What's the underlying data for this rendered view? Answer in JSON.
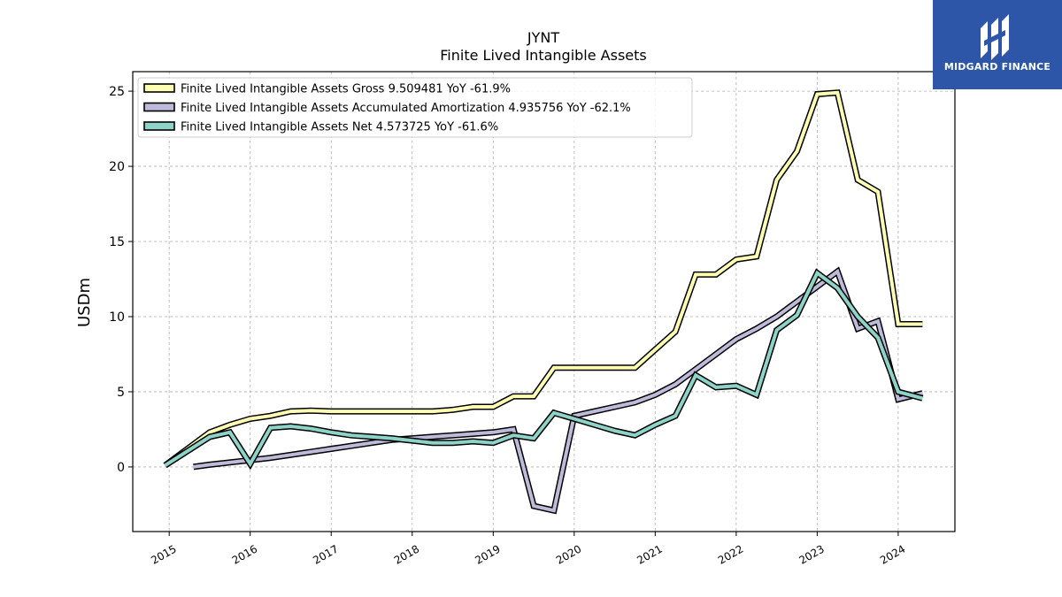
{
  "brand": {
    "name": "MIDGARD FINANCE",
    "color": "#2d56a8"
  },
  "chart_data": {
    "type": "line",
    "title": "JYNT",
    "subtitle": "Finite Lived Intangible Assets",
    "xlabel": "",
    "ylabel": "USDm",
    "xlim": [
      2014.55,
      2024.7
    ],
    "ylim": [
      -4.3,
      26.3
    ],
    "x_ticks": [
      2015,
      2016,
      2017,
      2018,
      2019,
      2020,
      2021,
      2022,
      2023,
      2024
    ],
    "x_tick_labels": [
      "2015",
      "2016",
      "2017",
      "2018",
      "2019",
      "2020",
      "2021",
      "2022",
      "2023",
      "2024"
    ],
    "y_ticks": [
      0,
      5,
      10,
      15,
      20,
      25
    ],
    "y_tick_labels": [
      "0",
      "5",
      "10",
      "15",
      "20",
      "25"
    ],
    "grid": true,
    "legend_position": "top-left",
    "series": [
      {
        "name": "Finite Lived Intangible Assets Gross  9.509481 YoY -61.9%",
        "color": "#ffffb3",
        "x": [
          2014.95,
          2015.5,
          2015.75,
          2016.0,
          2016.25,
          2016.5,
          2016.75,
          2017.0,
          2017.25,
          2017.5,
          2017.75,
          2018.0,
          2018.25,
          2018.5,
          2018.75,
          2019.0,
          2019.25,
          2019.5,
          2019.75,
          2020.0,
          2020.25,
          2020.5,
          2020.75,
          2021.0,
          2021.25,
          2021.5,
          2021.75,
          2022.0,
          2022.25,
          2022.5,
          2022.75,
          2023.0,
          2023.25,
          2023.5,
          2023.75,
          2024.0,
          2024.3
        ],
        "values": [
          0.1,
          2.3,
          2.8,
          3.2,
          3.4,
          3.7,
          3.75,
          3.7,
          3.7,
          3.7,
          3.7,
          3.7,
          3.7,
          3.8,
          4.0,
          4.0,
          4.7,
          4.7,
          6.6,
          6.6,
          6.6,
          6.6,
          6.6,
          7.8,
          9.0,
          12.8,
          12.8,
          13.8,
          14.0,
          19.1,
          21.0,
          24.8,
          24.9,
          19.1,
          18.3,
          9.5,
          9.5
        ]
      },
      {
        "name": "Finite Lived Intangible Assets Accumulated Amortization  4.935756 YoY -62.1%",
        "color": "#bebada",
        "x": [
          2015.3,
          2015.5,
          2015.75,
          2016.0,
          2016.25,
          2016.5,
          2016.75,
          2017.0,
          2017.25,
          2017.5,
          2017.75,
          2018.0,
          2018.25,
          2018.5,
          2018.75,
          2019.0,
          2019.25,
          2019.5,
          2019.75,
          2020.0,
          2020.25,
          2020.5,
          2020.75,
          2021.0,
          2021.25,
          2021.5,
          2021.75,
          2022.0,
          2022.25,
          2022.5,
          2022.75,
          2023.0,
          2023.25,
          2023.5,
          2023.75,
          2024.0,
          2024.3
        ],
        "values": [
          0.0,
          0.15,
          0.3,
          0.45,
          0.6,
          0.8,
          1.0,
          1.2,
          1.4,
          1.6,
          1.8,
          1.9,
          2.0,
          2.1,
          2.2,
          2.3,
          2.5,
          -2.6,
          -2.9,
          3.4,
          3.7,
          4.0,
          4.3,
          4.8,
          5.5,
          6.5,
          7.5,
          8.5,
          9.2,
          10.0,
          11.0,
          12.0,
          13.0,
          9.2,
          9.7,
          4.5,
          4.9
        ]
      },
      {
        "name": "Finite Lived Intangible Assets Net  4.573725 YoY -61.6%",
        "color": "#8dd3c7",
        "x": [
          2014.95,
          2015.5,
          2015.75,
          2016.0,
          2016.25,
          2016.5,
          2016.75,
          2017.0,
          2017.25,
          2017.5,
          2017.75,
          2018.0,
          2018.25,
          2018.5,
          2018.75,
          2019.0,
          2019.25,
          2019.5,
          2019.75,
          2020.0,
          2020.25,
          2020.5,
          2020.75,
          2021.0,
          2021.25,
          2021.5,
          2021.75,
          2022.0,
          2022.25,
          2022.5,
          2022.75,
          2023.0,
          2023.25,
          2023.5,
          2023.75,
          2024.0,
          2024.3
        ],
        "values": [
          0.1,
          2.0,
          2.3,
          0.2,
          2.6,
          2.7,
          2.55,
          2.3,
          2.1,
          2.0,
          1.9,
          1.75,
          1.6,
          1.6,
          1.7,
          1.6,
          2.1,
          1.9,
          3.6,
          3.2,
          2.8,
          2.4,
          2.1,
          2.8,
          3.4,
          6.1,
          5.3,
          5.4,
          4.8,
          9.1,
          10.1,
          12.9,
          11.9,
          10.0,
          8.6,
          5.0,
          4.57
        ]
      }
    ]
  }
}
